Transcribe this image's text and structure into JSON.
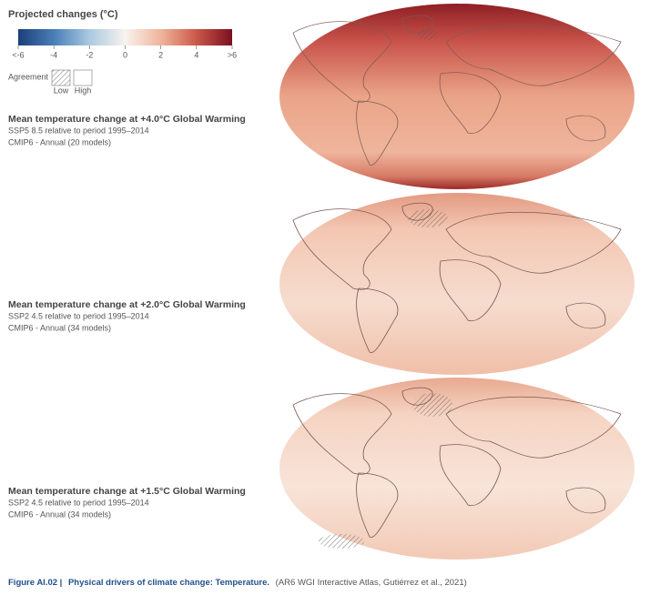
{
  "legend": {
    "title": "Projected changes (°C)",
    "ticks": [
      {
        "value": -6,
        "label": "<-6"
      },
      -4,
      -2,
      0,
      2,
      4,
      {
        "value": 6,
        "label": ">6"
      }
    ],
    "agreement": {
      "label": "Agreement",
      "low": "Low",
      "high": "High"
    }
  },
  "panels": [
    {
      "title": "Mean temperature change at +4.0°C Global Warming",
      "lines": [
        "SSP5 8.5 relative to period 1995–2014",
        "CMIP6 - Annual (20 models)"
      ]
    },
    {
      "title": "Mean temperature change at +2.0°C Global Warming",
      "lines": [
        "SSP2 4.5 relative to period 1995–2014",
        "CMIP6 - Annual (34 models)"
      ]
    },
    {
      "title": "Mean temperature change at +1.5°C Global Warming",
      "lines": [
        "SSP2 4.5 relative to period 1995–2014",
        "CMIP6 - Annual (34 models)"
      ]
    }
  ],
  "caption": {
    "label": "Figure AI.02 |",
    "title": "Physical drivers of climate change: Temperature.",
    "source": "(AR6 WGI Interactive Atlas, Gutiérrez et al., 2021)"
  }
}
